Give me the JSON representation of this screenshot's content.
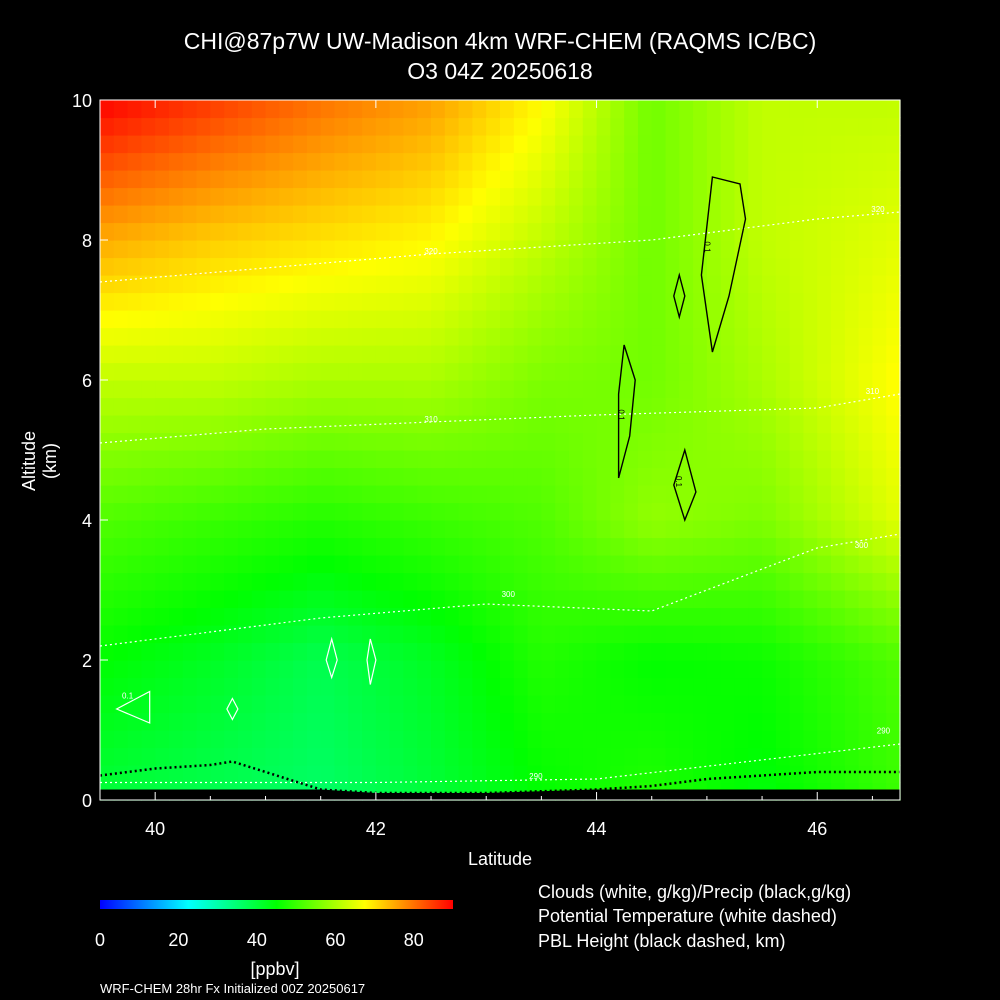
{
  "title_line1": "CHI@87p7W UW-Madison 4km WRF-CHEM (RAQMS IC/BC)",
  "title_line2": "O3 04Z 20250618",
  "legend_lines": [
    "Clouds (white, g/kg)/Precip (black,g/kg)",
    "Potential Temperature (white dashed)",
    "PBL Height (black dashed, km)"
  ],
  "footer": "WRF-CHEM 28hr  Fx Initialized 00Z 20250617",
  "colorbar": {
    "unit": "[ppbv]",
    "range": [
      0,
      90
    ],
    "tick_values": [
      0,
      20,
      40,
      60,
      80
    ],
    "tick_labels": [
      "0",
      "20",
      "40",
      "60",
      "80"
    ],
    "colors": [
      "#0000ff",
      "#00ffff",
      "#00ff00",
      "#ffff00",
      "#ff0000"
    ]
  },
  "chart_data": {
    "type": "heatmap",
    "title": "CHI@87p7W UW-Madison 4km WRF-CHEM (RAQMS IC/BC) O3 04Z 20250618",
    "xlabel": "Latitude",
    "ylabel": "Altitude (km)",
    "xlim": [
      39.5,
      46.75
    ],
    "ylim": [
      0,
      10
    ],
    "x_ticks": [
      40,
      42,
      44,
      46
    ],
    "x_tick_labels": [
      "40",
      "42",
      "44",
      "46"
    ],
    "y_ticks": [
      0,
      2,
      4,
      6,
      8,
      10
    ],
    "y_tick_labels": [
      "0",
      "2",
      "4",
      "6",
      "8",
      "10"
    ],
    "grid_x": [
      39.5,
      40.5,
      41.5,
      42.5,
      43.5,
      44.5,
      45.5,
      46.75
    ],
    "grid_y": [
      0,
      2,
      4,
      6,
      8,
      10
    ],
    "o3_ppbv": [
      [
        40,
        38,
        36,
        40,
        45,
        48,
        44,
        50
      ],
      [
        45,
        42,
        38,
        42,
        48,
        45,
        46,
        52
      ],
      [
        52,
        50,
        48,
        50,
        52,
        58,
        56,
        65
      ],
      [
        62,
        62,
        60,
        60,
        56,
        55,
        60,
        68
      ],
      [
        75,
        72,
        70,
        68,
        62,
        55,
        62,
        65
      ],
      [
        90,
        85,
        80,
        76,
        68,
        55,
        62,
        62
      ]
    ],
    "potential_temperature_K": [
      {
        "label": "290",
        "x": [
          39.5,
          42,
          44,
          46.75
        ],
        "y": [
          0.25,
          0.25,
          0.3,
          0.8
        ]
      },
      {
        "label": "300",
        "x": [
          39.5,
          41.5,
          43,
          44.5,
          46,
          46.75
        ],
        "y": [
          2.2,
          2.6,
          2.8,
          2.7,
          3.6,
          3.8
        ]
      },
      {
        "label": "310",
        "x": [
          39.5,
          41,
          42.5,
          44,
          46,
          46.75
        ],
        "y": [
          5.1,
          5.3,
          5.4,
          5.5,
          5.6,
          5.8
        ]
      },
      {
        "label": "320",
        "x": [
          39.5,
          41,
          42.5,
          44.5,
          46,
          46.75
        ],
        "y": [
          7.4,
          7.6,
          7.8,
          8.0,
          8.3,
          8.4
        ]
      }
    ],
    "potential_temperature_labels": [
      {
        "text": "290",
        "x": 43.45,
        "y": 0.3
      },
      {
        "text": "290",
        "x": 46.6,
        "y": 0.95
      },
      {
        "text": "300",
        "x": 43.2,
        "y": 2.9
      },
      {
        "text": "300",
        "x": 46.4,
        "y": 3.6
      },
      {
        "text": "310",
        "x": 42.5,
        "y": 5.4
      },
      {
        "text": "310",
        "x": 46.5,
        "y": 5.8
      },
      {
        "text": "320",
        "x": 42.5,
        "y": 7.8
      },
      {
        "text": "320",
        "x": 46.55,
        "y": 8.4
      }
    ],
    "pbl_height_km": {
      "x": [
        39.5,
        40,
        40.5,
        40.7,
        41.2,
        41.5,
        42,
        43,
        44,
        44.5,
        45,
        45.5,
        46,
        46.75
      ],
      "y": [
        0.35,
        0.45,
        0.5,
        0.55,
        0.3,
        0.15,
        0.1,
        0.1,
        0.15,
        0.2,
        0.3,
        0.35,
        0.4,
        0.4
      ]
    },
    "cloud_contours": [
      {
        "level": "0.1",
        "x": [
          39.65,
          39.95,
          39.95,
          39.65
        ],
        "y": [
          1.3,
          1.55,
          1.1,
          1.3
        ]
      },
      {
        "level": "0.1",
        "x": [
          40.7,
          40.75,
          40.7,
          40.65
        ],
        "y": [
          1.45,
          1.3,
          1.15,
          1.3
        ]
      },
      {
        "level": "0.1",
        "x": [
          41.6,
          41.65,
          41.6,
          41.55
        ],
        "y": [
          2.3,
          2.0,
          1.75,
          2.0
        ]
      },
      {
        "level": "0.1",
        "x": [
          41.95,
          42.0,
          41.95,
          41.92
        ],
        "y": [
          2.3,
          2.0,
          1.65,
          2.0
        ]
      }
    ],
    "precip_contours": [
      {
        "level": "0.1",
        "x": [
          44.25,
          44.35,
          44.3,
          44.2,
          44.2
        ],
        "y": [
          6.5,
          6.0,
          5.2,
          4.6,
          5.8
        ]
      },
      {
        "level": "0.1",
        "x": [
          44.8,
          44.9,
          44.8,
          44.7,
          44.8
        ],
        "y": [
          5.0,
          4.4,
          4.0,
          4.5,
          5.0
        ]
      },
      {
        "level": "",
        "x": [
          44.75,
          44.8,
          44.75,
          44.7,
          44.75
        ],
        "y": [
          7.5,
          7.2,
          6.9,
          7.2,
          7.5
        ]
      },
      {
        "level": "0.1",
        "x": [
          45.05,
          45.3,
          45.35,
          45.2,
          45.05,
          44.95,
          45.05
        ],
        "y": [
          8.9,
          8.8,
          8.3,
          7.2,
          6.4,
          7.5,
          8.9
        ]
      }
    ],
    "precip_labels": [
      {
        "text": "0.1",
        "x": 44.2,
        "y": 5.5
      },
      {
        "text": "0.1",
        "x": 44.72,
        "y": 4.55
      },
      {
        "text": "0.1",
        "x": 44.98,
        "y": 7.9
      }
    ],
    "cloud_labels": [
      {
        "text": "0.1",
        "x": 39.75,
        "y": 1.45
      }
    ]
  }
}
